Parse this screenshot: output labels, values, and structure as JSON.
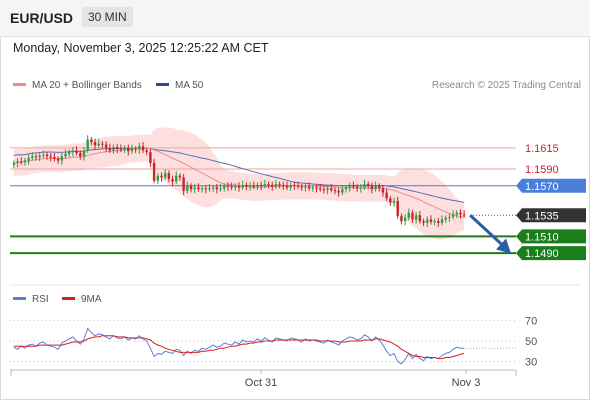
{
  "header": {
    "symbol": "EUR/USD",
    "timeframe": "30 MIN"
  },
  "datetime": "Monday, November 3, 2025 12:25:22 AM CET",
  "legend": {
    "ma20_label": "MA 20 + Bollinger Bands",
    "ma50_label": "MA 50",
    "rsi_label": "RSI",
    "ma9_label": "9MA"
  },
  "credit": "Research © 2025 Trading Central",
  "colors": {
    "bull": "#2f9e3f",
    "bear": "#c8222b",
    "bollinger_fill": "#fdd9d9",
    "ma20": "#f08a8a",
    "ma50": "#5b6db5",
    "resistance": "#f4a3a3",
    "pivot": "#4a7fd9",
    "support": "#1a7f1a",
    "last": "#333333",
    "arrow": "#2b5ca8",
    "rsi": "#5b7fd6",
    "rsi_ma": "#d62020"
  },
  "chart_data": [
    {
      "type": "candlestick",
      "title": "",
      "xlabel": "",
      "ylabel": "",
      "ylim": [
        1.147,
        1.166
      ],
      "x_ticks": [
        "Oct 31",
        "Nov 3"
      ],
      "levels": [
        {
          "value": 1.1615,
          "label": "1.1615",
          "kind": "resistance"
        },
        {
          "value": 1.159,
          "label": "1.1590",
          "kind": "resistance"
        },
        {
          "value": 1.157,
          "label": "1.1570",
          "kind": "pivot"
        },
        {
          "value": 1.1535,
          "label": "1.1535",
          "kind": "last"
        },
        {
          "value": 1.151,
          "label": "1.1510",
          "kind": "support"
        },
        {
          "value": 1.149,
          "label": "1.1490",
          "kind": "support"
        }
      ],
      "closes": [
        1.1597,
        1.1599,
        1.1598,
        1.16,
        1.1603,
        1.1605,
        1.1604,
        1.1606,
        1.1607,
        1.1605,
        1.1604,
        1.1602,
        1.16,
        1.1605,
        1.1608,
        1.161,
        1.1612,
        1.1609,
        1.1605,
        1.1612,
        1.1625,
        1.1622,
        1.1618,
        1.162,
        1.1619,
        1.1615,
        1.1612,
        1.1616,
        1.1614,
        1.1613,
        1.1615,
        1.1611,
        1.1614,
        1.1613,
        1.1617,
        1.1612,
        1.161,
        1.1597,
        1.1576,
        1.1582,
        1.158,
        1.1585,
        1.1578,
        1.1575,
        1.1582,
        1.158,
        1.1564,
        1.157,
        1.1566,
        1.1568,
        1.1566,
        1.1567,
        1.1566,
        1.1567,
        1.1568,
        1.1566,
        1.1567,
        1.157,
        1.1569,
        1.1568,
        1.157,
        1.1568,
        1.1571,
        1.1569,
        1.157,
        1.1569,
        1.1571,
        1.157,
        1.1572,
        1.1571,
        1.1569,
        1.1572,
        1.1571,
        1.157,
        1.1568,
        1.1571,
        1.157,
        1.1569,
        1.1568,
        1.1569,
        1.1567,
        1.1568,
        1.1567,
        1.1566,
        1.1565,
        1.1567,
        1.1565,
        1.1564,
        1.1562,
        1.1566,
        1.1568,
        1.157,
        1.1569,
        1.1567,
        1.1568,
        1.1572,
        1.157,
        1.1566,
        1.157,
        1.1567,
        1.1562,
        1.1555,
        1.155,
        1.1552,
        1.1534,
        1.1528,
        1.1532,
        1.1538,
        1.153,
        1.1535,
        1.1528,
        1.1526,
        1.153,
        1.1527,
        1.1528,
        1.1526,
        1.153,
        1.1532,
        1.1533,
        1.1536,
        1.1538,
        1.1536,
        1.1535
      ],
      "rsi_ylim": [
        20,
        80
      ],
      "rsi_ticks": [
        70,
        50,
        30
      ],
      "rsi": [
        44,
        42,
        45,
        43,
        46,
        47,
        45,
        48,
        49,
        46,
        45,
        44,
        42,
        48,
        50,
        52,
        54,
        50,
        47,
        52,
        62,
        58,
        55,
        57,
        56,
        54,
        52,
        55,
        53,
        52,
        54,
        51,
        53,
        52,
        55,
        52,
        50,
        43,
        35,
        38,
        37,
        40,
        39,
        38,
        42,
        41,
        36,
        40,
        38,
        41,
        40,
        43,
        42,
        44,
        46,
        44,
        45,
        48,
        47,
        46,
        49,
        47,
        51,
        49,
        50,
        49,
        52,
        50,
        53,
        51,
        49,
        53,
        52,
        51,
        50,
        53,
        52,
        51,
        49,
        52,
        50,
        51,
        50,
        49,
        48,
        51,
        49,
        48,
        46,
        50,
        52,
        54,
        53,
        51,
        52,
        56,
        54,
        50,
        54,
        51,
        46,
        40,
        36,
        38,
        30,
        28,
        32,
        38,
        33,
        37,
        33,
        31,
        35,
        33,
        34,
        33,
        36,
        38,
        39,
        42,
        44,
        43,
        43
      ],
      "rsi_ma": [
        45,
        45,
        45,
        45,
        45,
        45,
        45,
        46,
        46,
        46,
        46,
        46,
        46,
        46,
        47,
        48,
        49,
        49,
        49,
        50,
        52,
        53,
        54,
        54,
        55,
        55,
        55,
        55,
        54,
        54,
        54,
        53,
        53,
        53,
        53,
        53,
        52,
        51,
        48,
        46,
        45,
        43,
        42,
        41,
        40,
        39,
        39,
        39,
        39,
        39,
        39,
        40,
        40,
        41,
        41,
        42,
        43,
        43,
        44,
        45,
        45,
        46,
        47,
        47,
        48,
        48,
        49,
        49,
        50,
        50,
        50,
        51,
        51,
        51,
        51,
        51,
        51,
        51,
        51,
        51,
        51,
        51,
        51,
        50,
        50,
        50,
        50,
        50,
        49,
        49,
        49,
        50,
        50,
        50,
        50,
        51,
        51,
        51,
        52,
        52,
        51,
        50,
        49,
        47,
        45,
        42,
        40,
        38,
        36,
        35,
        35,
        34,
        34,
        34,
        34,
        33,
        33,
        34,
        34,
        35,
        36,
        37,
        38
      ]
    }
  ]
}
